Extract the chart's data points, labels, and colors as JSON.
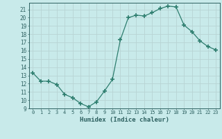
{
  "x": [
    0,
    1,
    2,
    3,
    4,
    5,
    6,
    7,
    8,
    9,
    10,
    11,
    12,
    13,
    14,
    15,
    16,
    17,
    18,
    19,
    20,
    21,
    22,
    23
  ],
  "y": [
    13.3,
    12.3,
    12.3,
    11.9,
    10.7,
    10.3,
    9.6,
    9.2,
    9.8,
    11.1,
    12.5,
    17.3,
    20.0,
    20.3,
    20.2,
    20.6,
    21.1,
    21.4,
    21.3,
    19.1,
    18.3,
    17.2,
    16.5,
    16.1
  ],
  "line_color": "#2d7d6e",
  "marker": "+",
  "marker_size": 4,
  "marker_lw": 1.2,
  "bg_color": "#c8eaea",
  "grid_color": "#b8d4d4",
  "xlabel": "Humidex (Indice chaleur)",
  "ylabel_ticks": [
    9,
    10,
    11,
    12,
    13,
    14,
    15,
    16,
    17,
    18,
    19,
    20,
    21
  ],
  "xlim": [
    -0.5,
    23.5
  ],
  "ylim": [
    9,
    21.8
  ]
}
